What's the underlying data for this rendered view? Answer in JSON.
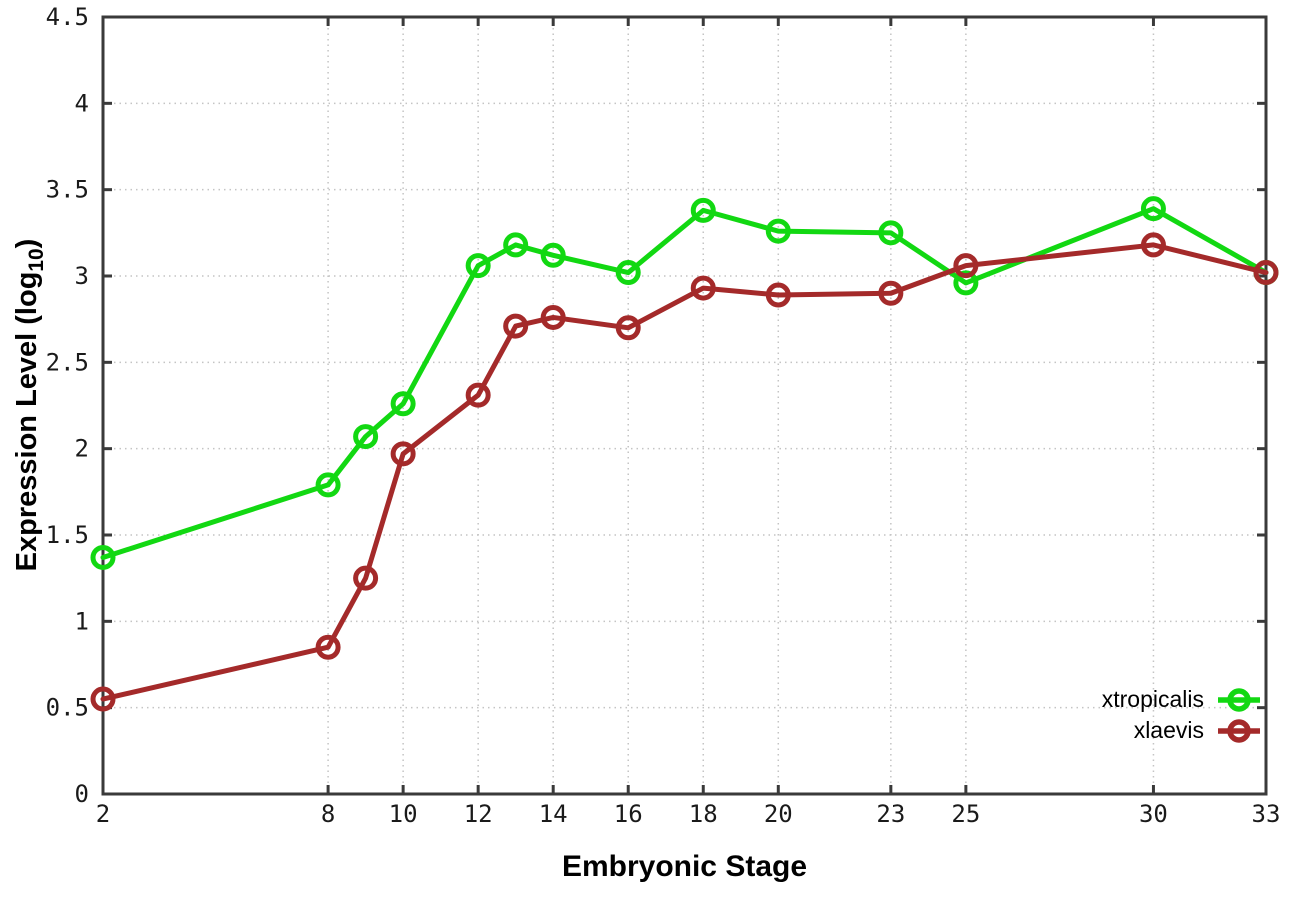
{
  "chart_data": {
    "type": "line",
    "title": "",
    "xlabel": "Embryonic Stage",
    "ylabel": {
      "prefix": "Expression Level (log",
      "sub": "10",
      "suffix": ")"
    },
    "x": [
      2,
      8,
      9,
      10,
      12,
      13,
      14,
      16,
      18,
      20,
      23,
      25,
      30,
      33
    ],
    "series": [
      {
        "name": "xtropicalis",
        "color": "#12d812",
        "values": [
          1.37,
          1.79,
          2.07,
          2.26,
          3.06,
          3.18,
          3.12,
          3.02,
          3.38,
          3.26,
          3.25,
          2.96,
          3.39,
          3.02
        ]
      },
      {
        "name": "xlaevis",
        "color": "#a42a2a",
        "values": [
          0.55,
          0.85,
          1.25,
          1.97,
          2.31,
          2.71,
          2.76,
          2.7,
          2.93,
          2.89,
          2.9,
          3.06,
          3.18,
          3.02
        ]
      }
    ],
    "xlim": [
      2,
      33
    ],
    "ylim": [
      0,
      4.5
    ],
    "xticks": [
      2,
      8,
      10,
      12,
      14,
      16,
      18,
      20,
      23,
      25,
      30,
      33
    ],
    "yticks": [
      0,
      0.5,
      1,
      1.5,
      2,
      2.5,
      3,
      3.5,
      4,
      4.5
    ],
    "grid": true,
    "legend_position": "bottom-right",
    "colors": {
      "axis": "#3a3a3a",
      "grid": "#c4c4c4",
      "tick_text": "#1a1a1a"
    }
  }
}
